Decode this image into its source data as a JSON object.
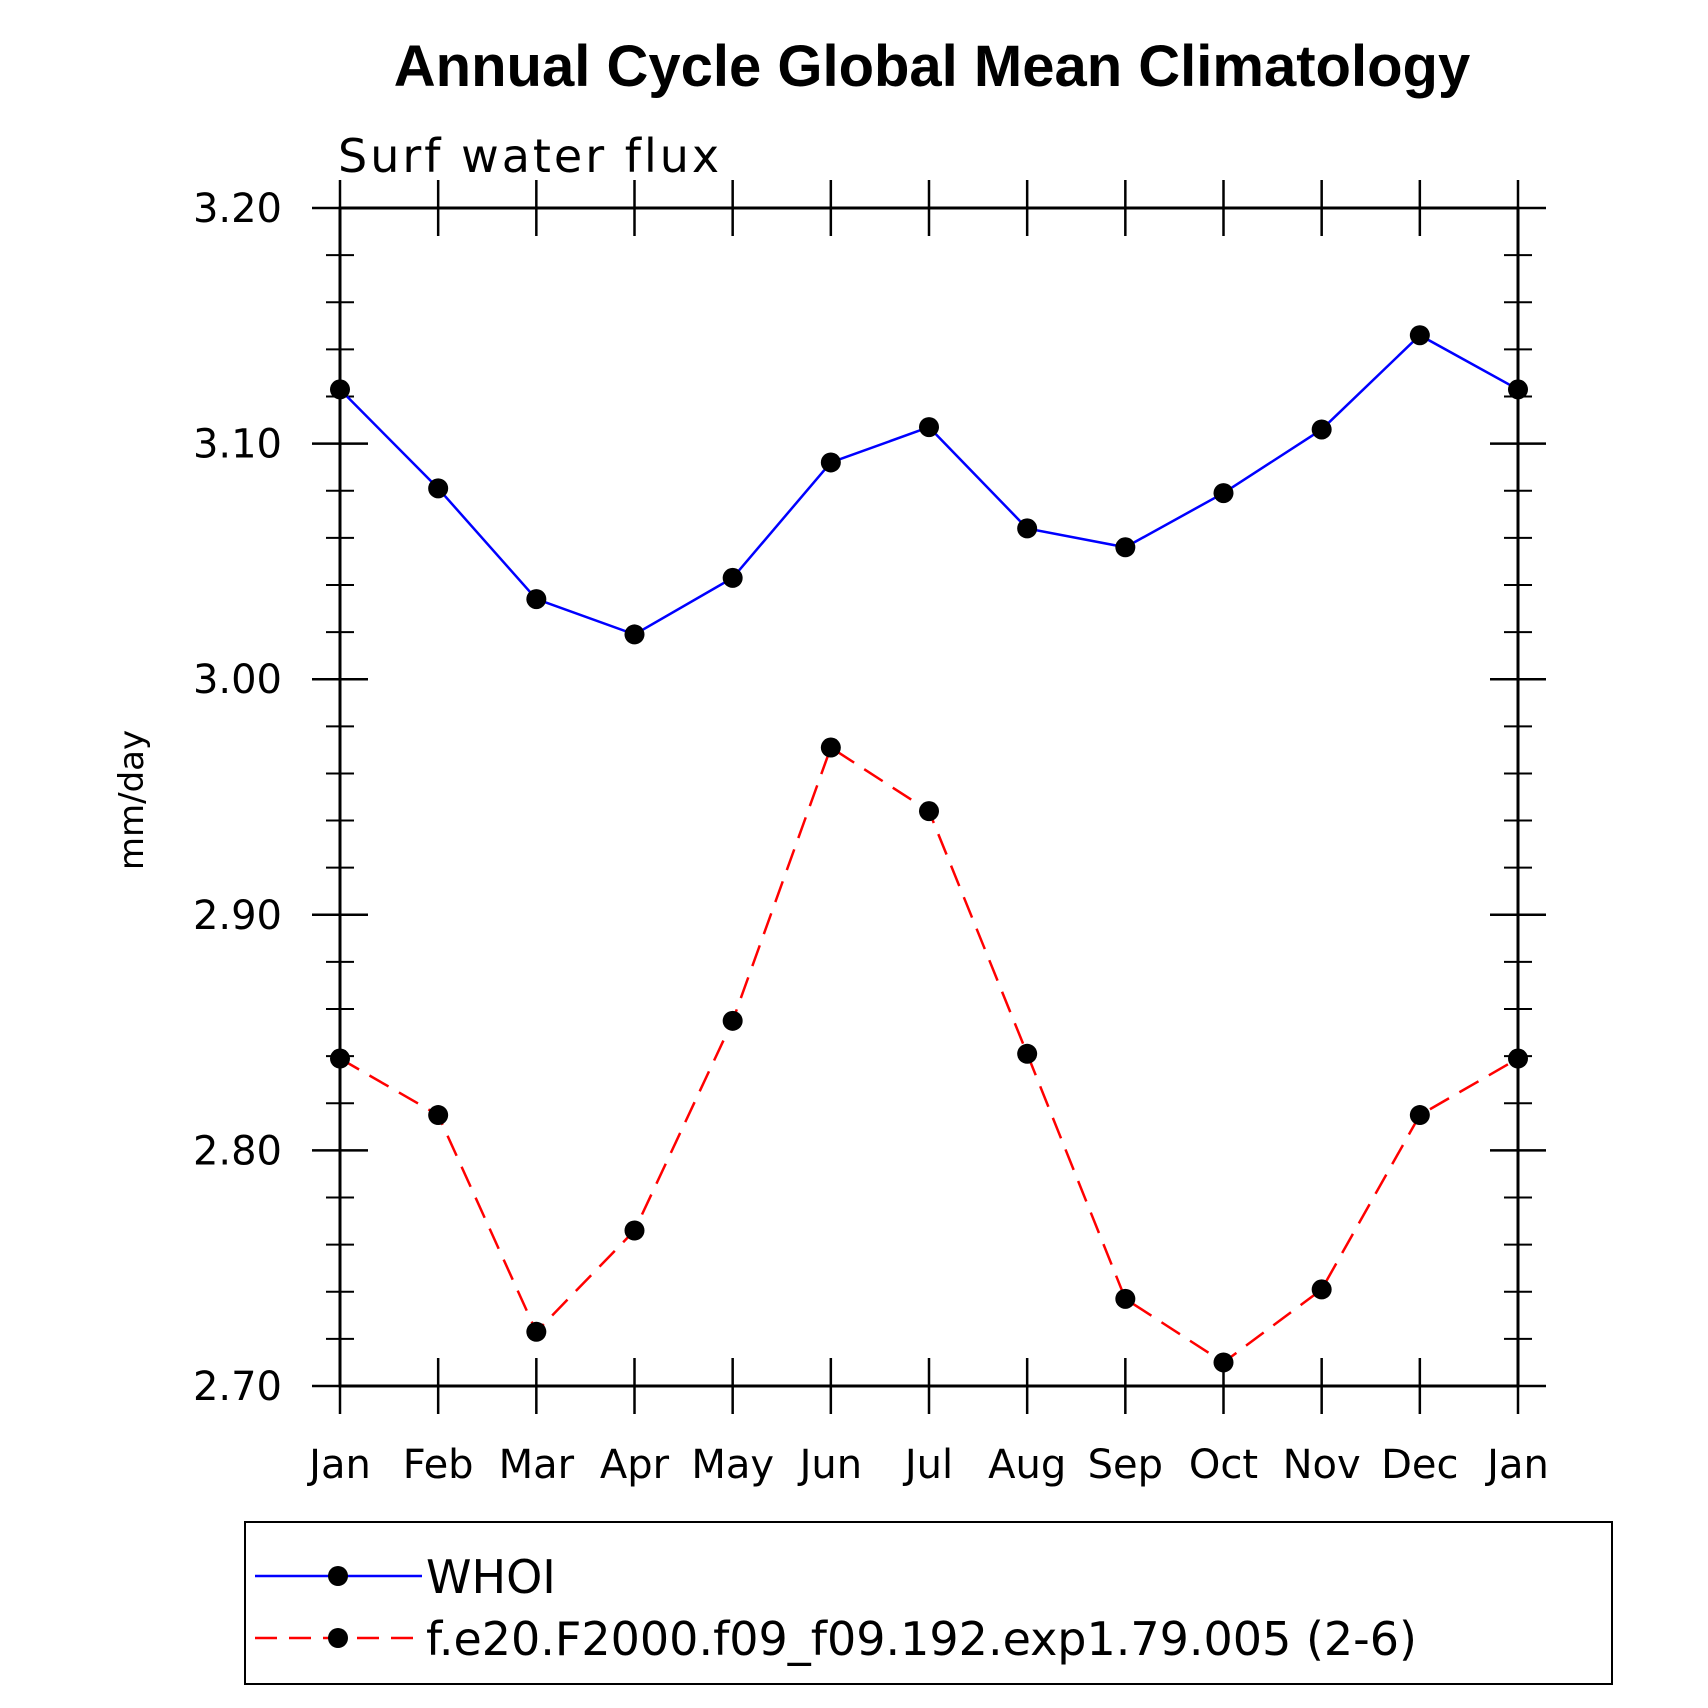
{
  "chart_data": {
    "type": "line",
    "title": "Annual Cycle Global Mean Climatology",
    "subtitle": "Surf water flux",
    "ylabel": "mm/day",
    "xlabel": "",
    "categories": [
      "Jan",
      "Feb",
      "Mar",
      "Apr",
      "May",
      "Jun",
      "Jul",
      "Aug",
      "Sep",
      "Oct",
      "Nov",
      "Dec",
      "Jan"
    ],
    "ylim": [
      2.7,
      3.2
    ],
    "yticks": [
      "2.70",
      "2.80",
      "2.90",
      "3.00",
      "3.10",
      "3.20"
    ],
    "grid": false,
    "legend_position": "bottom",
    "series": [
      {
        "name": "WHOI",
        "color": "#0000ff",
        "dash": "solid",
        "values": [
          3.123,
          3.081,
          3.034,
          3.019,
          3.043,
          3.092,
          3.107,
          3.064,
          3.056,
          3.079,
          3.106,
          3.146,
          3.123
        ]
      },
      {
        "name": "f.e20.F2000.f09_f09.192.exp1.79.005 (2-6)",
        "color": "#ff0000",
        "dash": "dashed",
        "values": [
          2.839,
          2.815,
          2.723,
          2.766,
          2.855,
          2.971,
          2.944,
          2.841,
          2.737,
          2.71,
          2.741,
          2.815,
          2.839
        ]
      }
    ]
  }
}
